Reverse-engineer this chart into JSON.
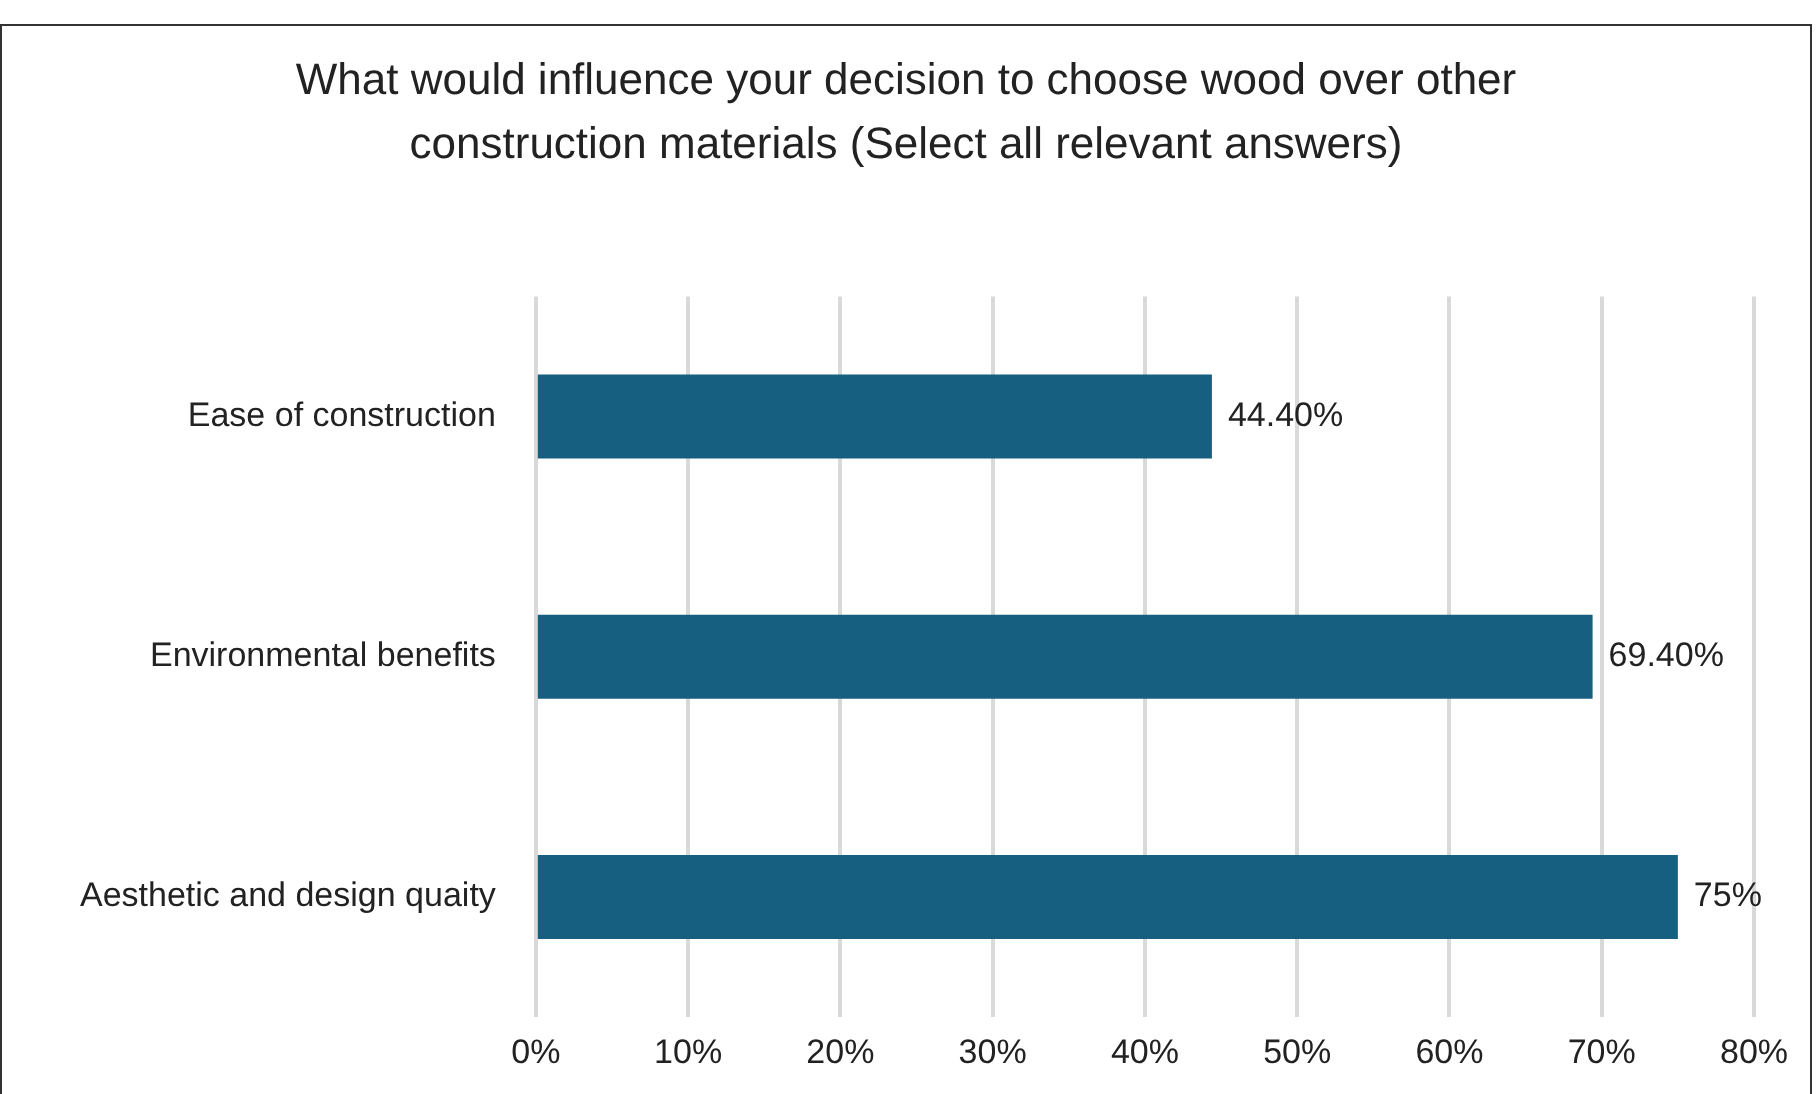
{
  "chart_data": {
    "type": "bar",
    "orientation": "horizontal",
    "title": "What would influence your decision to choose wood over other construction materials (Select all relevant answers)",
    "categories": [
      "Ease of construction",
      "Environmental benefits",
      "Aesthetic and design quaity"
    ],
    "values": [
      44.4,
      69.4,
      75
    ],
    "value_labels": [
      "44.40%",
      "69.40%",
      "75%"
    ],
    "color": "#175f80",
    "xlim": [
      0,
      80
    ],
    "xticks": [
      {
        "value": 0,
        "label": "0%"
      },
      {
        "value": 10,
        "label": "10%"
      },
      {
        "value": 20,
        "label": "20%"
      },
      {
        "value": 30,
        "label": "30%"
      },
      {
        "value": 40,
        "label": "40%"
      },
      {
        "value": 50,
        "label": "50%"
      },
      {
        "value": 60,
        "label": "60%"
      },
      {
        "value": 70,
        "label": "70%"
      },
      {
        "value": 80,
        "label": "80%"
      }
    ],
    "grid": "x",
    "legend": false
  }
}
